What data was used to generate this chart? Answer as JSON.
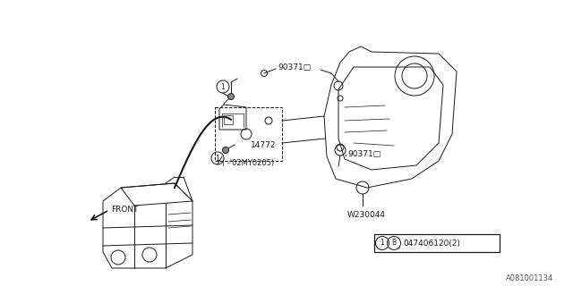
{
  "bg_color": "#ffffff",
  "line_color": "#1a1a1a",
  "text_color": "#1a1a1a",
  "diagram_id": "A081001134",
  "label_90371_top": "90371□",
  "label_90371_mid": "90371□",
  "label_14772": "14772",
  "label_date": "( -'02MY0205)",
  "label_w230044": "W230044",
  "label_front": "FRONT",
  "part_num": "047406120(2)"
}
